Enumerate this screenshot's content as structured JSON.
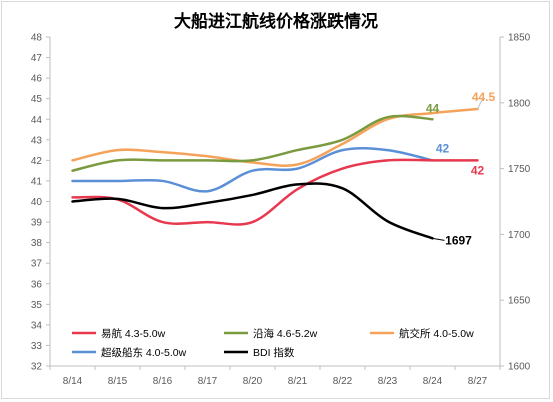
{
  "chart_data": {
    "type": "line",
    "title": "大船进江航线价格涨跌情况",
    "categories": [
      "8/14",
      "8/15",
      "8/16",
      "8/17",
      "8/20",
      "8/21",
      "8/22",
      "8/23",
      "8/24",
      "8/27"
    ],
    "ylim_left": [
      32,
      48
    ],
    "yticks_left": [
      "32",
      "33",
      "34",
      "35",
      "36",
      "37",
      "38",
      "39",
      "40",
      "41",
      "42",
      "43",
      "44",
      "45",
      "46",
      "47",
      "48"
    ],
    "ylim_right": [
      1600,
      1850
    ],
    "yticks_right": [
      "1600",
      "1650",
      "1700",
      "1750",
      "1800",
      "1850"
    ],
    "grid": false,
    "legend_position": "bottom-inside",
    "series": [
      {
        "name": "易航 4.3-5.0w",
        "axis": "left",
        "color": "#e8384f",
        "values": [
          40.2,
          40.1,
          39.0,
          39.0,
          39.0,
          40.6,
          41.6,
          42.0,
          42.0,
          42.0
        ],
        "end_label": "42"
      },
      {
        "name": "沿海 4.6-5.2w",
        "axis": "left",
        "color": "#7a9a3f",
        "values": [
          41.5,
          42.0,
          42.0,
          42.0,
          42.0,
          42.5,
          43.0,
          44.1,
          44.0,
          null
        ],
        "end_label": "44"
      },
      {
        "name": "航交所 4.0-5.0w",
        "axis": "left",
        "color": "#f5a25a",
        "values": [
          42.0,
          42.5,
          42.4,
          42.2,
          41.9,
          41.8,
          42.8,
          44.0,
          44.3,
          44.5
        ],
        "end_label": "44.5"
      },
      {
        "name": "超级船东 4.0-5.0w",
        "axis": "left",
        "color": "#5b8fd6",
        "values": [
          41.0,
          41.0,
          41.0,
          40.5,
          41.5,
          41.6,
          42.5,
          42.5,
          42.0,
          null
        ],
        "end_label": "42"
      },
      {
        "name": "BDI 指数",
        "axis": "right",
        "color": "#000000",
        "values": [
          1725,
          1727,
          1720,
          1724,
          1730,
          1738,
          1735,
          1710,
          1697,
          null
        ],
        "end_label": "1697"
      }
    ]
  }
}
